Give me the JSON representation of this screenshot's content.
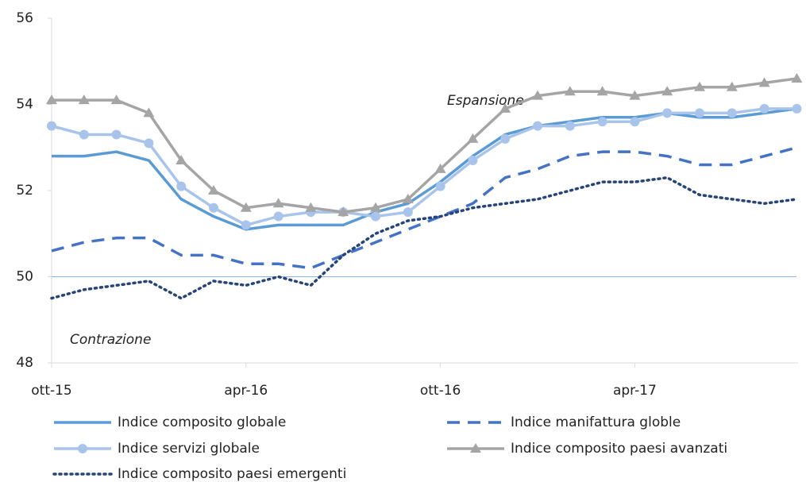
{
  "chart_data": {
    "type": "line",
    "categories": [
      "ott-15",
      null,
      null,
      null,
      null,
      null,
      "apr-16",
      null,
      null,
      null,
      null,
      null,
      "ott-16",
      null,
      null,
      null,
      null,
      null,
      "apr-17",
      null,
      null,
      null,
      null,
      null
    ],
    "ylim": [
      48,
      56
    ],
    "yticks": [
      48,
      50,
      52,
      54,
      56
    ],
    "reference_line": 50,
    "annotations": [
      "Espansione",
      "Contrazione"
    ],
    "series": [
      {
        "name": "Indice composito globale",
        "color": "#5b9bd5",
        "style": "solid",
        "marker": "none",
        "values": [
          52.8,
          52.8,
          52.9,
          52.7,
          51.8,
          51.4,
          51.1,
          51.2,
          51.2,
          51.2,
          51.5,
          51.7,
          52.2,
          52.8,
          53.3,
          53.5,
          53.6,
          53.7,
          53.7,
          53.8,
          53.7,
          53.7,
          53.8,
          53.9
        ]
      },
      {
        "name": "Indice manifattura globle",
        "color": "#4472c4",
        "style": "dashed",
        "marker": "none",
        "values": [
          50.6,
          50.8,
          50.9,
          50.9,
          50.5,
          50.5,
          50.3,
          50.3,
          50.2,
          50.5,
          50.8,
          51.1,
          51.4,
          51.7,
          52.3,
          52.5,
          52.8,
          52.9,
          52.9,
          52.8,
          52.6,
          52.6,
          52.8,
          53.0
        ]
      },
      {
        "name": "Indice servizi globale",
        "color": "#a9c4eb",
        "style": "solid",
        "marker": "circle",
        "values": [
          53.5,
          53.3,
          53.3,
          53.1,
          52.1,
          51.6,
          51.2,
          51.4,
          51.5,
          51.5,
          51.4,
          51.5,
          52.1,
          52.7,
          53.2,
          53.5,
          53.5,
          53.6,
          53.6,
          53.8,
          53.8,
          53.8,
          53.9,
          53.9
        ]
      },
      {
        "name": "Indice composito paesi avanzati",
        "color": "#a5a5a5",
        "style": "solid",
        "marker": "triangle",
        "values": [
          54.1,
          54.1,
          54.1,
          53.8,
          52.7,
          52.0,
          51.6,
          51.7,
          51.6,
          51.5,
          51.6,
          51.8,
          52.5,
          53.2,
          53.9,
          54.2,
          54.3,
          54.3,
          54.2,
          54.3,
          54.4,
          54.4,
          54.5,
          54.6
        ]
      },
      {
        "name": "Indice composito paesi emergenti",
        "color": "#264478",
        "style": "dotted",
        "marker": "none",
        "values": [
          49.5,
          49.7,
          49.8,
          49.9,
          49.5,
          49.9,
          49.8,
          50.0,
          49.8,
          50.5,
          51.0,
          51.3,
          51.4,
          51.6,
          51.7,
          51.8,
          52.0,
          52.2,
          52.2,
          52.3,
          51.9,
          51.8,
          51.7,
          51.8
        ]
      }
    ]
  }
}
